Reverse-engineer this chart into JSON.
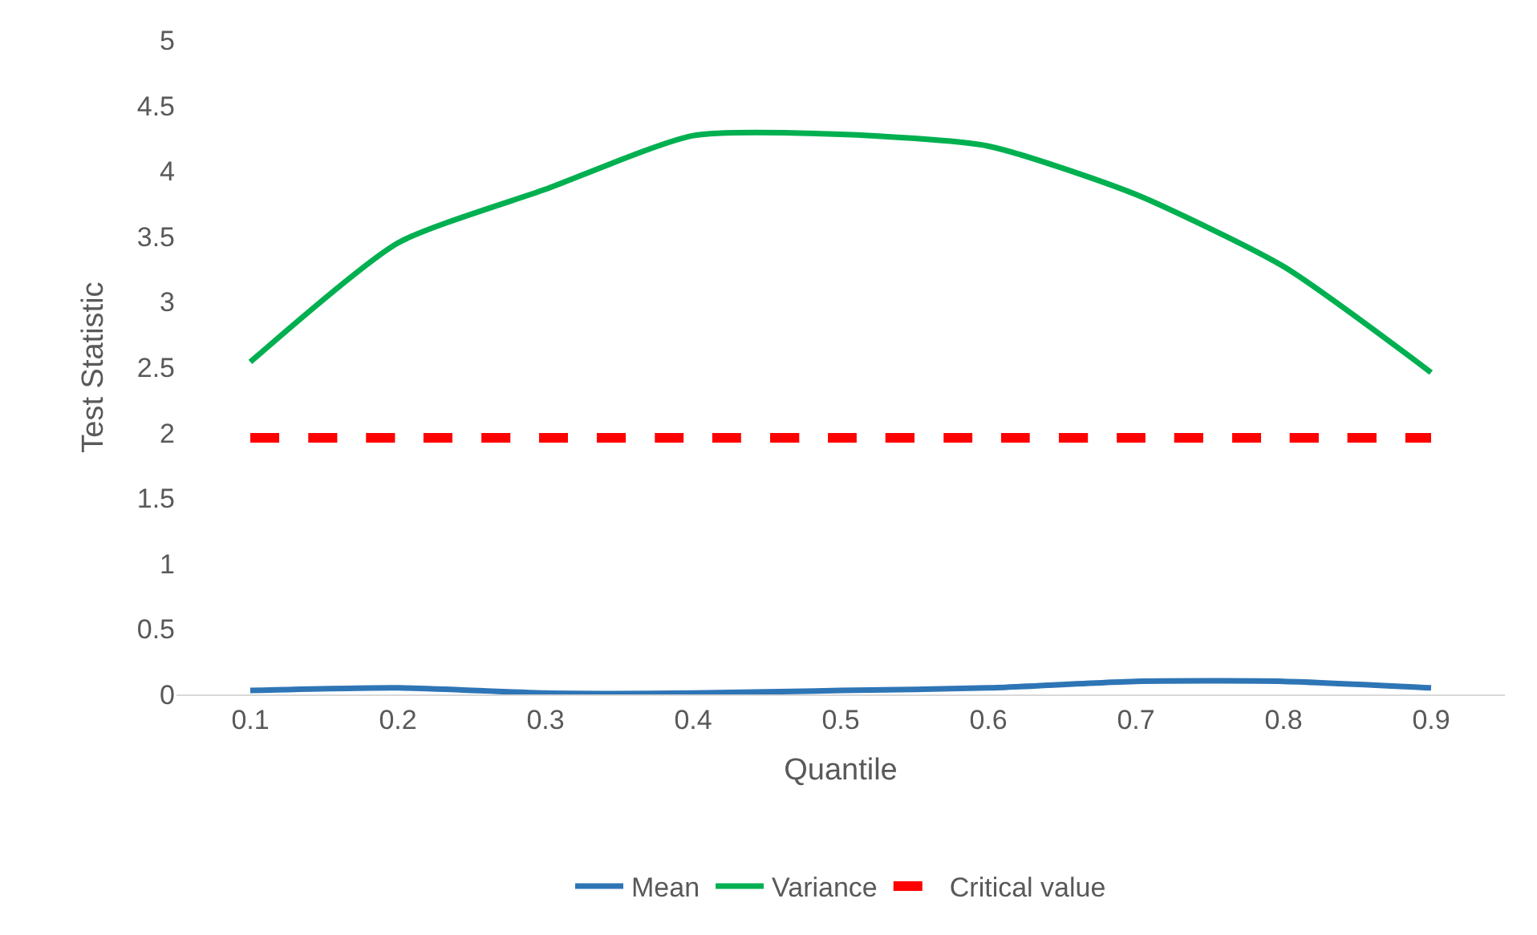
{
  "chart_data": {
    "type": "line",
    "xlabel": "Quantile",
    "ylabel": "Test Statistic",
    "categories": [
      "0.1",
      "0.2",
      "0.3",
      "0.4",
      "0.5",
      "0.6",
      "0.7",
      "0.8",
      "0.9"
    ],
    "series": [
      {
        "name": "Mean",
        "color": "#2e75b6",
        "values": [
          0.03,
          0.05,
          0.01,
          0.01,
          0.03,
          0.05,
          0.1,
          0.1,
          0.05
        ]
      },
      {
        "name": "Variance",
        "color": "#00b050",
        "values": [
          2.54,
          3.45,
          3.86,
          4.27,
          4.28,
          4.19,
          3.82,
          3.27,
          2.46
        ]
      },
      {
        "name": "Critical value",
        "color": "#ff0000",
        "line_style": "dashed",
        "values": [
          1.96,
          1.96,
          1.96,
          1.96,
          1.96,
          1.96,
          1.96,
          1.96,
          1.96
        ]
      }
    ],
    "ylim": [
      0,
      5
    ],
    "yticks": [
      0,
      0.5,
      1,
      1.5,
      2,
      2.5,
      3,
      3.5,
      4,
      4.5,
      5
    ],
    "grid": false,
    "legend": "bottom",
    "marker": "none",
    "line_style": "solid"
  }
}
